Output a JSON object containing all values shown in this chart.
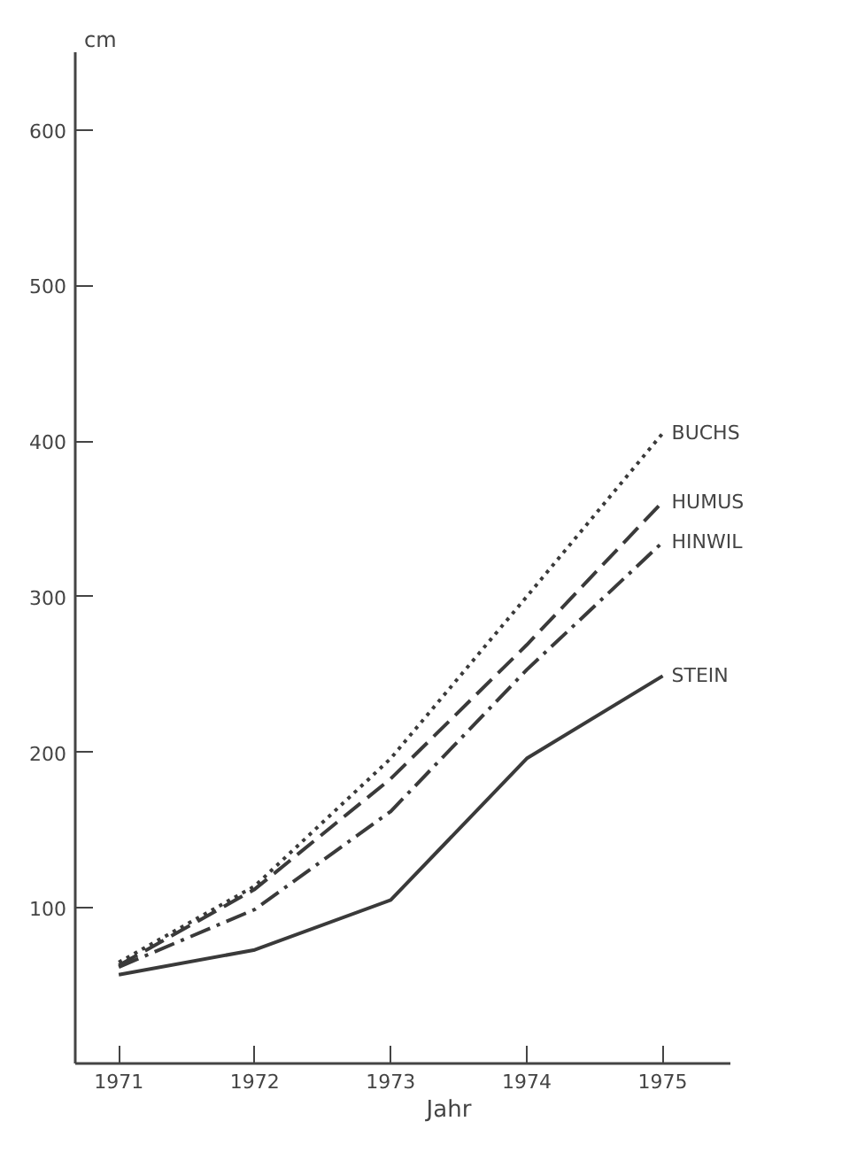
{
  "chart_data": {
    "type": "line",
    "xlabel": "Jahr",
    "ylabel": "cm",
    "x": [
      1971,
      1972,
      1973,
      1974,
      1975
    ],
    "xlim": [
      1970.68,
      1975.5
    ],
    "ylim": [
      0,
      650
    ],
    "xticks": [
      1971,
      1972,
      1973,
      1974,
      1975
    ],
    "yticks": [
      100,
      200,
      300,
      400,
      500,
      600
    ],
    "grid": false,
    "marker": "none",
    "series": [
      {
        "name": "BUCHS",
        "color": "#3a3a3a",
        "line_style": "dotted",
        "values": [
          65,
          114,
          196,
          300,
          405
        ]
      },
      {
        "name": "HUMUS",
        "color": "#3a3a3a",
        "line_style": "dashed",
        "values": [
          63,
          112,
          183,
          269,
          361
        ]
      },
      {
        "name": "HINWIL",
        "color": "#3a3a3a",
        "line_style": "dashdot",
        "values": [
          62,
          99,
          162,
          253,
          335
        ]
      },
      {
        "name": "STEIN",
        "color": "#3a3a3a",
        "line_style": "solid",
        "values": [
          57,
          73,
          105,
          196,
          249
        ]
      }
    ]
  }
}
